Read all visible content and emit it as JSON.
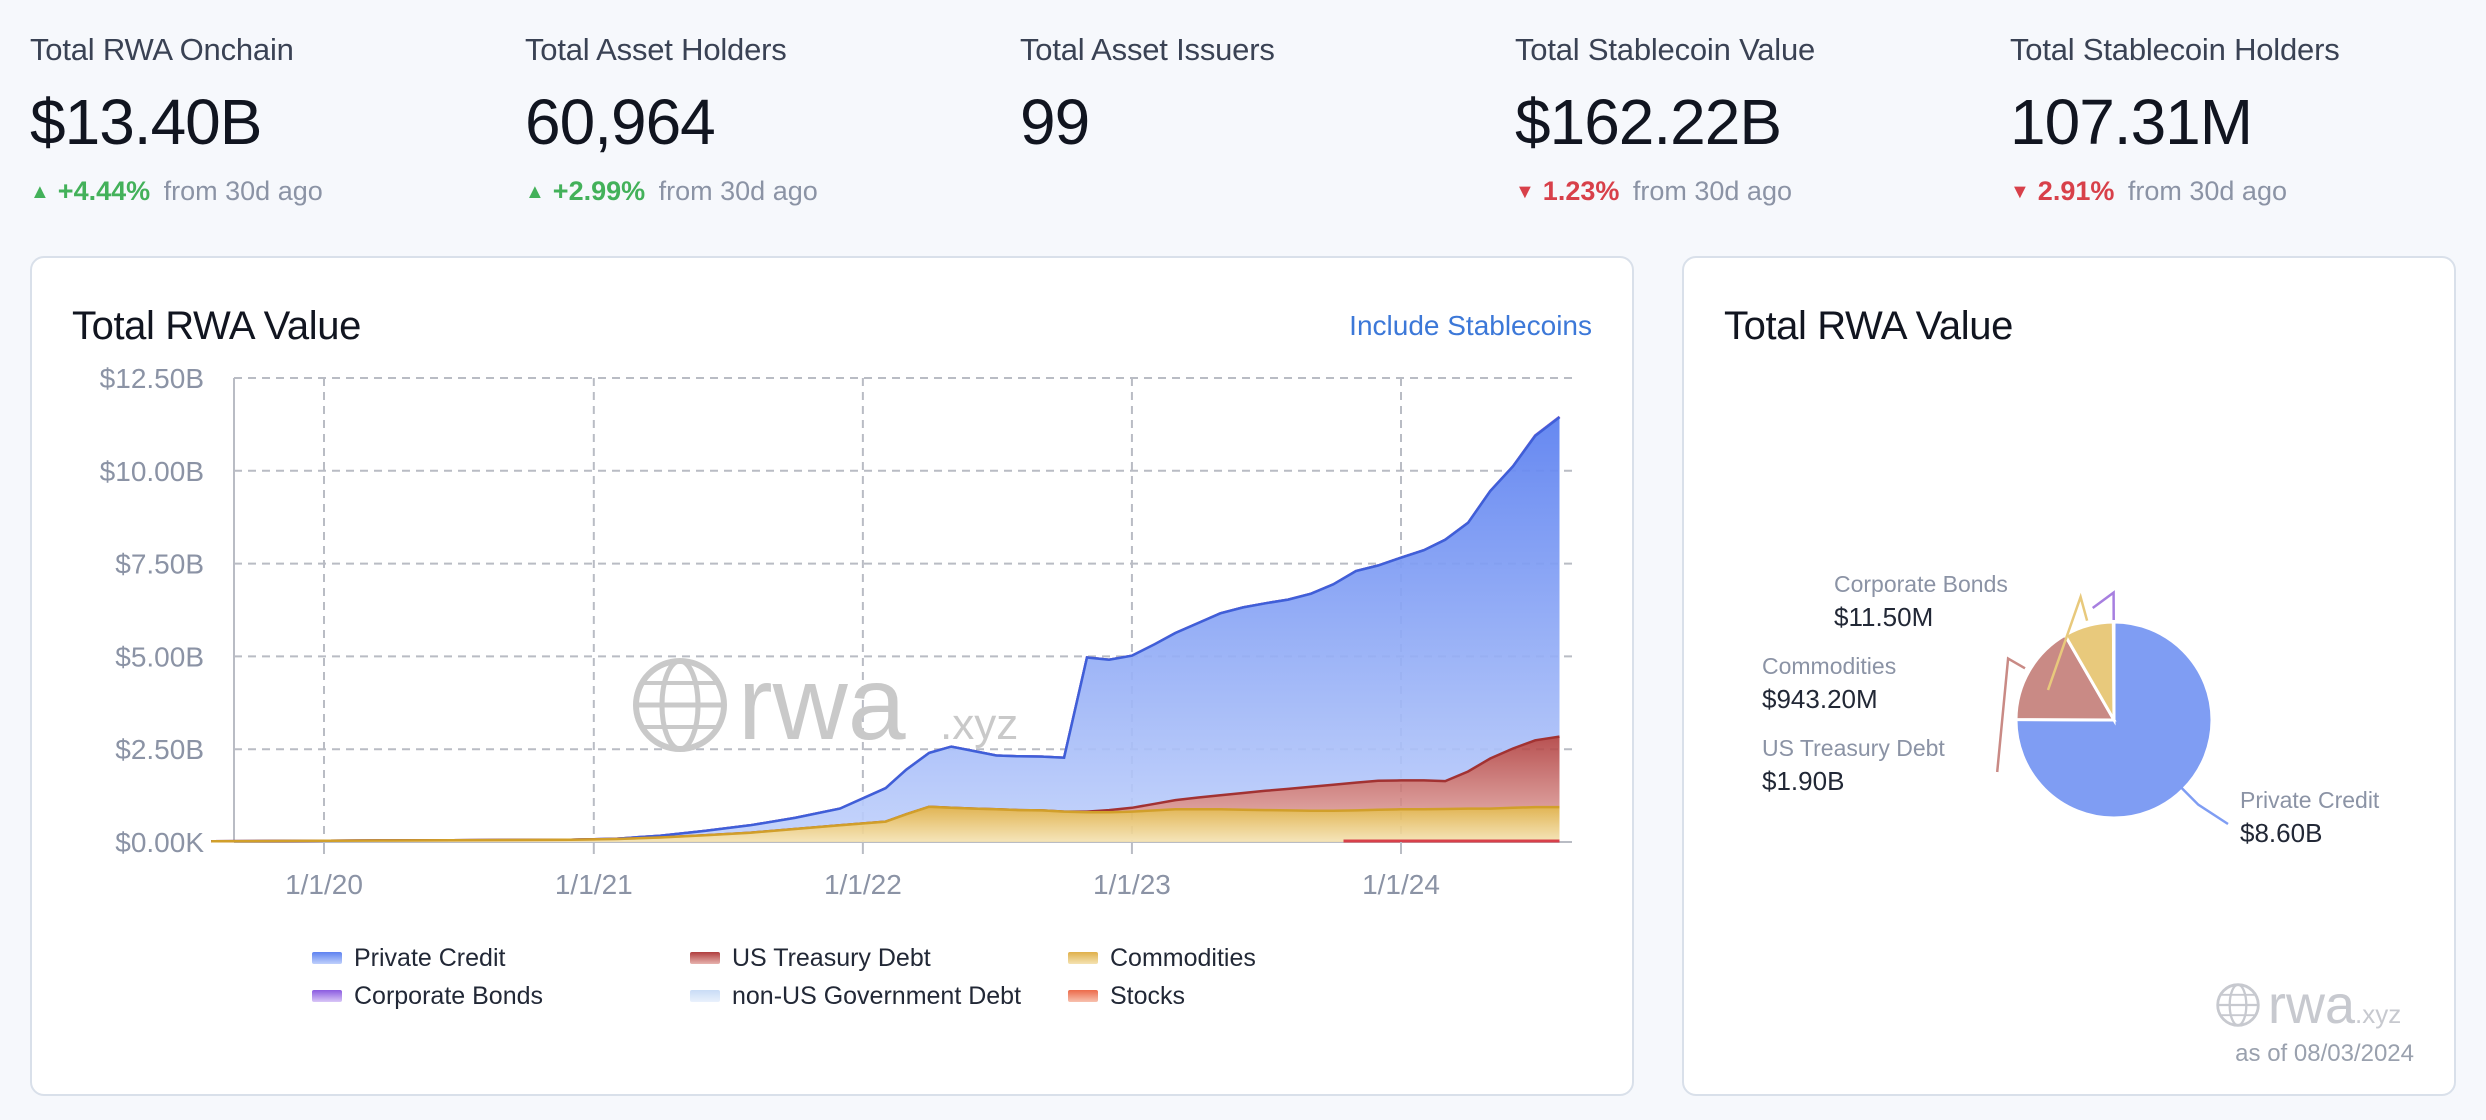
{
  "stats": [
    {
      "label": "Total RWA Onchain",
      "value": "$13.40B",
      "direction": "up",
      "change": "+4.44%",
      "suffix": "from 30d ago"
    },
    {
      "label": "Total Asset Holders",
      "value": "60,964",
      "direction": "up",
      "change": "+2.99%",
      "suffix": "from 30d ago"
    },
    {
      "label": "Total Asset Issuers",
      "value": "99",
      "direction": "",
      "change": "",
      "suffix": ""
    },
    {
      "label": "Total Stablecoin Value",
      "value": "$162.22B",
      "direction": "down",
      "change": "1.23%",
      "suffix": "from 30d ago"
    },
    {
      "label": "Total Stablecoin Holders",
      "value": "107.31M",
      "direction": "down",
      "change": "2.91%",
      "suffix": "from 30d ago"
    }
  ],
  "arrows": {
    "up": "▲",
    "down": "▼"
  },
  "colors": {
    "up": "#43b15a",
    "down": "#d8404a",
    "link": "#3c78d8"
  },
  "area_card": {
    "title": "Total RWA Value",
    "toggle_label": "Include Stablecoins"
  },
  "pie_card": {
    "title": "Total RWA Value",
    "as_of": "as of 08/03/2024"
  },
  "watermark": {
    "brand": "rwa",
    "suffix": ".xyz",
    "icon": "globe-icon"
  },
  "chart_data": [
    {
      "type": "area",
      "stacked": true,
      "title": "Total RWA Value",
      "x": [
        "2019-08-01",
        "2019-12-01",
        "2020-04-01",
        "2020-08-01",
        "2020-12-01",
        "2021-02-01",
        "2021-04-01",
        "2021-06-01",
        "2021-08-01",
        "2021-10-01",
        "2021-12-01",
        "2022-02-01",
        "2022-03-01",
        "2022-04-01",
        "2022-05-01",
        "2022-06-01",
        "2022-07-01",
        "2022-08-01",
        "2022-09-01",
        "2022-10-01",
        "2022-11-01",
        "2022-12-01",
        "2023-01-01",
        "2023-02-01",
        "2023-03-01",
        "2023-04-01",
        "2023-05-01",
        "2023-06-01",
        "2023-07-01",
        "2023-08-01",
        "2023-09-01",
        "2023-10-01",
        "2023-11-01",
        "2023-12-01",
        "2024-01-01",
        "2024-02-01",
        "2024-03-01",
        "2024-04-01",
        "2024-05-01",
        "2024-06-01",
        "2024-07-01",
        "2024-08-03"
      ],
      "x_tick_labels": [
        "1/1/20",
        "1/1/21",
        "1/1/22",
        "1/1/23",
        "1/1/24"
      ],
      "x_tick_values": [
        "2020-01-01",
        "2021-01-01",
        "2022-01-01",
        "2023-01-01",
        "2024-01-01"
      ],
      "y_tick_labels": [
        "$0.00K",
        "$2.50B",
        "$5.00B",
        "$7.50B",
        "$10.00B",
        "$12.50B"
      ],
      "ylim": [
        0,
        12.5
      ],
      "y_unit": "B",
      "grid": true,
      "legend_position": "bottom",
      "series": [
        {
          "name": "Commodities",
          "color": "#e6c46b",
          "values": [
            0.02,
            0.03,
            0.04,
            0.05,
            0.06,
            0.08,
            0.12,
            0.18,
            0.25,
            0.35,
            0.45,
            0.55,
            0.75,
            0.95,
            0.92,
            0.9,
            0.88,
            0.86,
            0.85,
            0.82,
            0.8,
            0.8,
            0.82,
            0.85,
            0.88,
            0.88,
            0.88,
            0.87,
            0.86,
            0.85,
            0.84,
            0.84,
            0.85,
            0.87,
            0.88,
            0.88,
            0.89,
            0.9,
            0.9,
            0.92,
            0.94,
            0.94
          ]
        },
        {
          "name": "US Treasury Debt",
          "color": "#b94848",
          "values": [
            0,
            0,
            0,
            0,
            0,
            0,
            0,
            0,
            0,
            0,
            0,
            0,
            0,
            0,
            0,
            0,
            0,
            0,
            0,
            0,
            0.02,
            0.06,
            0.1,
            0.18,
            0.25,
            0.32,
            0.38,
            0.45,
            0.52,
            0.58,
            0.65,
            0.7,
            0.75,
            0.78,
            0.78,
            0.78,
            0.75,
            1.0,
            1.35,
            1.6,
            1.8,
            1.9
          ]
        },
        {
          "name": "Private Credit",
          "color": "#6b8ef0",
          "values": [
            0,
            0,
            0,
            0,
            0,
            0.01,
            0.05,
            0.12,
            0.2,
            0.3,
            0.45,
            0.9,
            1.2,
            1.45,
            1.65,
            1.55,
            1.45,
            1.45,
            1.45,
            1.45,
            4.15,
            4.05,
            4.1,
            4.3,
            4.5,
            4.7,
            4.9,
            5.0,
            5.05,
            5.1,
            5.2,
            5.4,
            5.7,
            5.8,
            6.0,
            6.2,
            6.5,
            6.7,
            7.2,
            7.6,
            8.2,
            8.6
          ]
        },
        {
          "name": "Corporate Bonds",
          "color": "#9b6ae0",
          "values": [
            0,
            0,
            0,
            0,
            0,
            0,
            0,
            0,
            0,
            0,
            0,
            0,
            0,
            0,
            0,
            0,
            0,
            0,
            0,
            0,
            0,
            0,
            0,
            0,
            0,
            0,
            0,
            0,
            0,
            0,
            0,
            0,
            0,
            0,
            0,
            0,
            0,
            0,
            0,
            0,
            0.01,
            0.0115
          ]
        },
        {
          "name": "non-US Government Debt",
          "color": "#c9dcf6",
          "values": [
            0,
            0,
            0,
            0,
            0,
            0,
            0,
            0,
            0,
            0,
            0,
            0,
            0,
            0,
            0,
            0,
            0,
            0,
            0,
            0,
            0,
            0,
            0,
            0,
            0,
            0,
            0,
            0,
            0,
            0,
            0,
            0,
            0,
            0,
            0,
            0,
            0,
            0,
            0,
            0,
            0,
            0
          ]
        },
        {
          "name": "Stocks",
          "color": "#ec6a4a",
          "values": [
            0,
            0,
            0,
            0,
            0,
            0,
            0,
            0,
            0,
            0,
            0,
            0,
            0,
            0,
            0,
            0,
            0,
            0,
            0,
            0,
            0,
            0,
            0,
            0,
            0,
            0,
            0,
            0,
            0,
            0,
            0,
            0,
            0,
            0,
            0,
            0,
            0,
            0,
            0,
            0,
            0,
            0
          ]
        }
      ]
    },
    {
      "type": "pie",
      "title": "Total RWA Value",
      "slices": [
        {
          "label": "Private Credit",
          "value": 8.6,
          "display": "$8.60B",
          "color": "#7f9df3"
        },
        {
          "label": "US Treasury Debt",
          "value": 1.9,
          "display": "$1.90B",
          "color": "#c98a85"
        },
        {
          "label": "Commodities",
          "value": 0.9432,
          "display": "$943.20M",
          "color": "#e8c97c"
        },
        {
          "label": "Corporate Bonds",
          "value": 0.0115,
          "display": "$11.50M",
          "color": "#a77fe0"
        }
      ]
    }
  ]
}
